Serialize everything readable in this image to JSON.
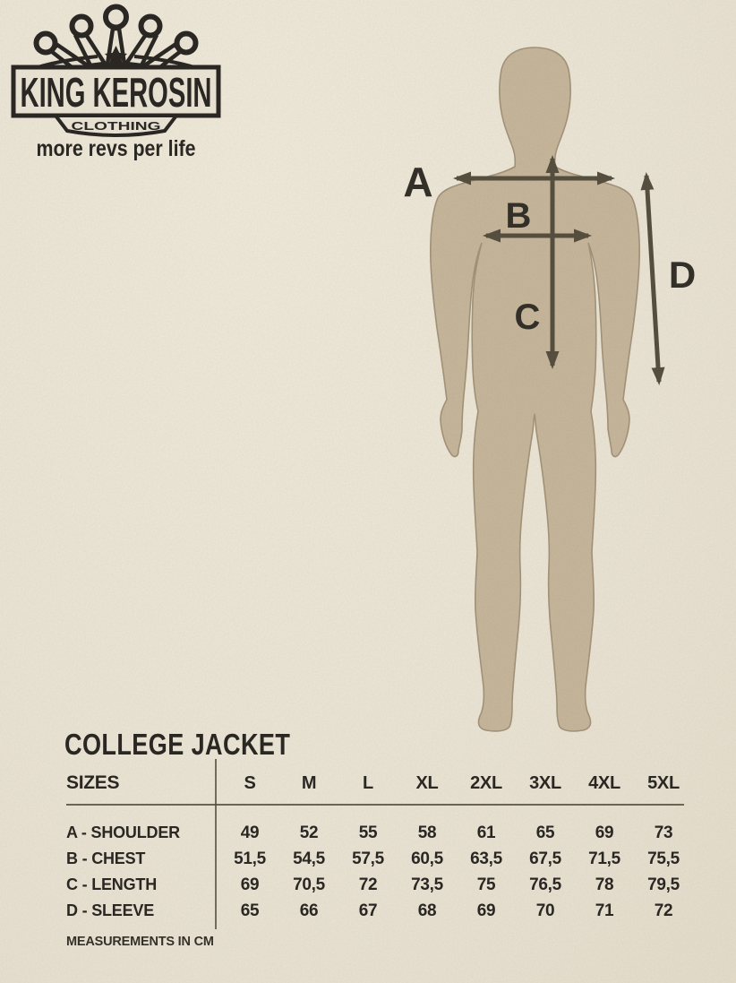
{
  "colors": {
    "bg": "#ece6d7",
    "body": "#c7b79c",
    "arrow": "#57503f",
    "ink": "#2b2824"
  },
  "diagram": {
    "labels": {
      "a": "A",
      "b": "B",
      "c": "C",
      "d": "D"
    }
  },
  "logo": {
    "brand": "KING KEROSIN",
    "sub": "CLOTHING",
    "tagline": "more revs per life"
  },
  "product": {
    "title": "COLLEGE JACKET"
  },
  "table": {
    "header_label": "SIZES",
    "sizes": [
      "S",
      "M",
      "L",
      "XL",
      "2XL",
      "3XL",
      "4XL",
      "5XL"
    ],
    "rows": [
      {
        "label": "A - SHOULDER",
        "values": [
          "49",
          "52",
          "55",
          "58",
          "61",
          "65",
          "69",
          "73"
        ]
      },
      {
        "label": "B - CHEST",
        "values": [
          "51,5",
          "54,5",
          "57,5",
          "60,5",
          "63,5",
          "67,5",
          "71,5",
          "75,5"
        ]
      },
      {
        "label": "C - LENGTH",
        "values": [
          "69",
          "70,5",
          "72",
          "73,5",
          "75",
          "76,5",
          "78",
          "79,5"
        ]
      },
      {
        "label": "D - SLEEVE",
        "values": [
          "65",
          "66",
          "67",
          "68",
          "69",
          "70",
          "71",
          "72"
        ]
      }
    ],
    "footnote": "MEASUREMENTS IN CM"
  }
}
